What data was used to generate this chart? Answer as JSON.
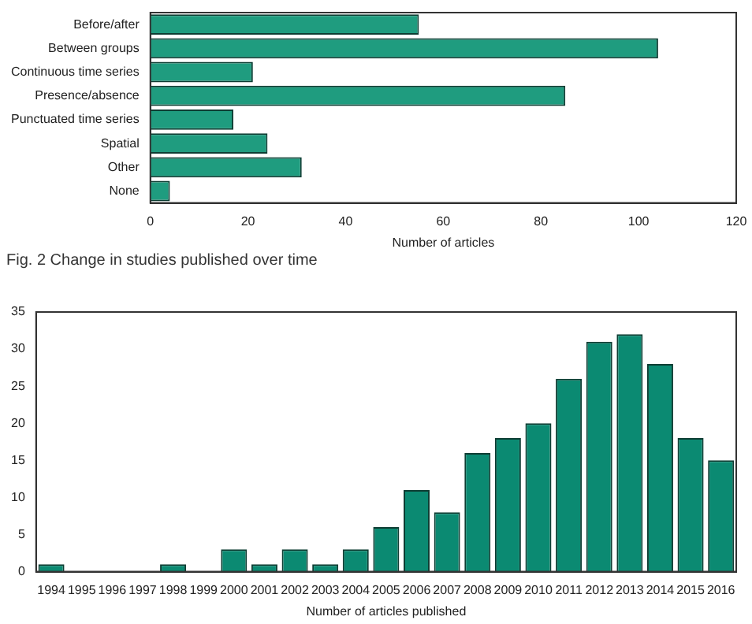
{
  "chart_data": [
    {
      "type": "bar",
      "orientation": "horizontal",
      "categories": [
        "Before/after",
        "Between groups",
        "Continuous time series",
        "Presence/absence",
        "Punctuated time series",
        "Spatial",
        "Other",
        "None"
      ],
      "values": [
        55,
        104,
        21,
        85,
        17,
        24,
        31,
        4
      ],
      "color": "#1f9c7f",
      "xlim": [
        0,
        120
      ],
      "xticks": [
        0,
        20,
        40,
        60,
        80,
        100,
        120
      ],
      "xlabel": "Number of articles",
      "grid": false,
      "legend": false,
      "annotations": [
        "Fig. 2  Change in studies published over time"
      ]
    },
    {
      "type": "bar",
      "categories": [
        "1994",
        "1995",
        "1996",
        "1997",
        "1998",
        "1999",
        "2000",
        "2001",
        "2002",
        "2003",
        "2004",
        "2005",
        "2006",
        "2007",
        "2008",
        "2009",
        "2010",
        "2011",
        "2012",
        "2013",
        "2014",
        "2015",
        "2016"
      ],
      "values": [
        1,
        0,
        0,
        0,
        1,
        0,
        3,
        1,
        3,
        1,
        3,
        6,
        11,
        8,
        16,
        18,
        20,
        26,
        31,
        32,
        28,
        18,
        15
      ],
      "color": "#0b8a72",
      "ylim": [
        0,
        35
      ],
      "yticks": [
        0,
        5,
        10,
        15,
        20,
        25,
        30,
        35
      ],
      "xlabel": "Number of articles published",
      "grid": false,
      "legend": false
    }
  ]
}
